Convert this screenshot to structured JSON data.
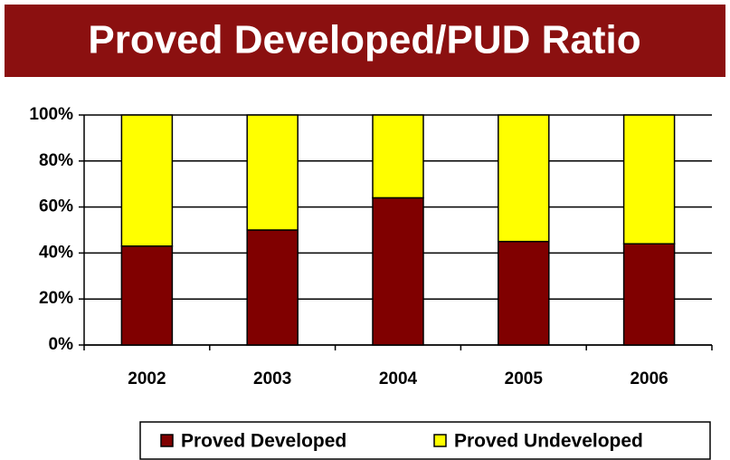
{
  "chart_data": {
    "type": "stacked_bar",
    "title": "Proved Developed/PUD Ratio",
    "categories": [
      "2002",
      "2003",
      "2004",
      "2005",
      "2006"
    ],
    "series": [
      {
        "name": "Proved Developed",
        "color": "#800000",
        "values": [
          43,
          50,
          64,
          45,
          44
        ]
      },
      {
        "name": "Proved Undeveloped",
        "color": "#ffff00",
        "values": [
          57,
          50,
          36,
          55,
          56
        ]
      }
    ],
    "ylim": [
      0,
      100
    ],
    "yticks": [
      {
        "value": 0,
        "label": "0%"
      },
      {
        "value": 20,
        "label": "20%"
      },
      {
        "value": 40,
        "label": "40%"
      },
      {
        "value": 60,
        "label": "60%"
      },
      {
        "value": 80,
        "label": "80%"
      },
      {
        "value": 100,
        "label": "100%"
      }
    ],
    "grid": true,
    "legend": "bottom"
  }
}
